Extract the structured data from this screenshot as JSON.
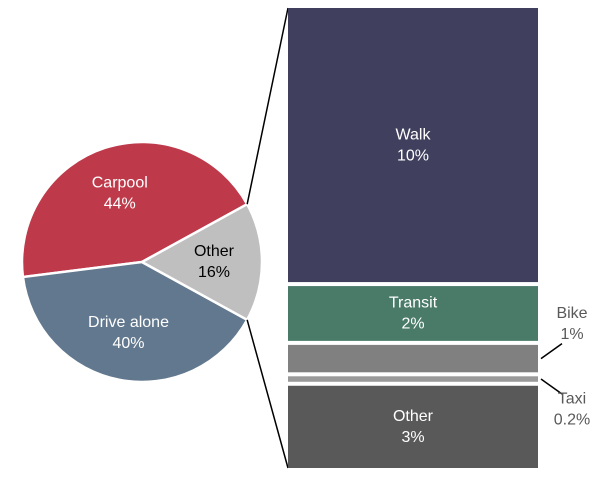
{
  "chart_data": {
    "type": "pie",
    "categories": [
      "Carpool",
      "Drive alone",
      "Other"
    ],
    "values": [
      44,
      40,
      16
    ],
    "value_labels": [
      "44%",
      "40%",
      "16%"
    ],
    "colors": [
      "#be3a4b",
      "#62788e",
      "#bfbfbf"
    ],
    "label_colors": [
      "#ffffff",
      "#ffffff",
      "#000000"
    ],
    "breakdown": {
      "categories": [
        "Walk",
        "Transit",
        "Bike",
        "Taxi",
        "Other"
      ],
      "values": [
        10,
        2,
        1,
        0.2,
        3
      ],
      "value_labels": [
        "10%",
        "2%",
        "1%",
        "0.2%",
        "3%"
      ],
      "colors": [
        "#40405e",
        "#4a7b69",
        "#808080",
        "#9a9a9a",
        "#595959"
      ]
    }
  }
}
